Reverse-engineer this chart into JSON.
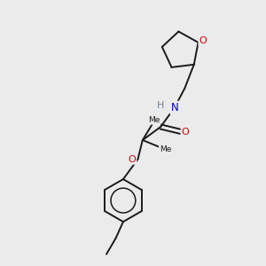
{
  "background_color": "#ebebeb",
  "bond_color": "#1a1a1a",
  "atom_colors": {
    "O": "#cc0000",
    "N": "#0000cc",
    "H": "#708090",
    "C": "#1a1a1a"
  },
  "figsize": [
    3.0,
    3.0
  ],
  "dpi": 100
}
